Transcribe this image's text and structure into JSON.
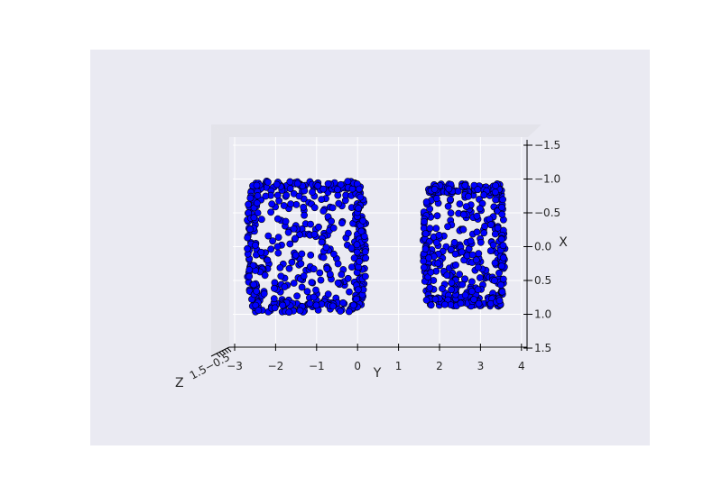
{
  "chart_data": {
    "type": "scatter",
    "projection": "3d",
    "view": "top-down (looking along Z)",
    "title": "",
    "xlabel": "Y",
    "ylabel": "X",
    "zlabel": "Z",
    "horizontal_axis_range": [
      -3.3,
      4.1
    ],
    "vertical_axis_range": [
      -1.5,
      1.5
    ],
    "horizontal_ticks": [
      "−3",
      "−2",
      "−1",
      "0",
      "1",
      "2",
      "3",
      "4"
    ],
    "vertical_ticks": [
      "−1.5",
      "−1.0",
      "−0.5",
      "0.0",
      "0.5",
      "1.0",
      "1.5"
    ],
    "z_tick_text": "1.5−0.5",
    "grid": true,
    "marker_color": "#0000ff",
    "marker_edge_color": "#000000",
    "background_color": "#eaeaf2",
    "series": [
      {
        "clusters": [
          {
            "y_range": [
              -2.7,
              0.2
            ],
            "x_range": [
              -0.97,
              0.97
            ]
          },
          {
            "y_range": [
              1.6,
              3.6
            ],
            "x_range": [
              -0.93,
              0.88
            ]
          }
        ]
      }
    ]
  }
}
